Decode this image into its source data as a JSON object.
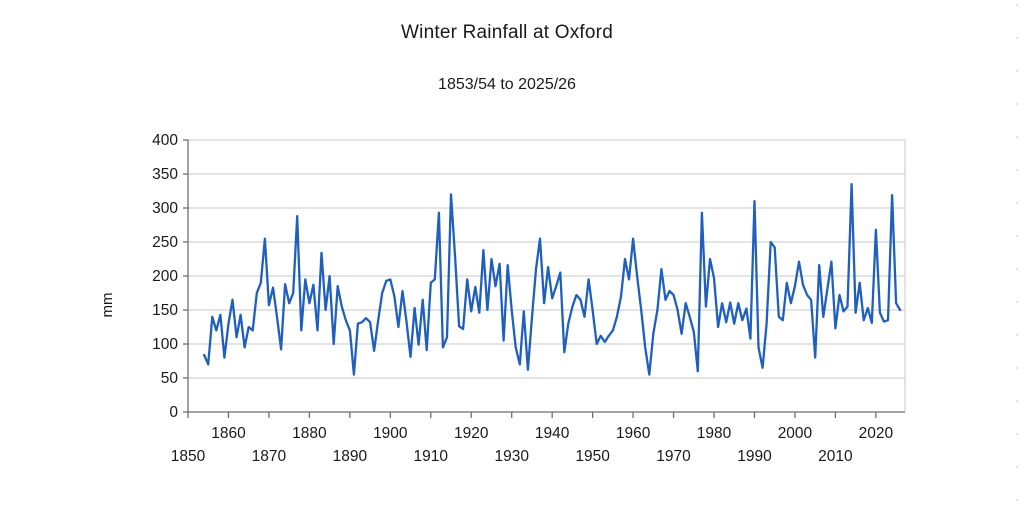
{
  "page": {
    "background": "#ffffff"
  },
  "header": {
    "title": "Winter Rainfall at Oxford",
    "subtitle": "1853/54 to 2025/26"
  },
  "chart_data": {
    "type": "line",
    "title": "Winter Rainfall at Oxford",
    "subtitle": "1853/54 to 2025/26",
    "xlabel": "",
    "ylabel": "mm",
    "ylim": [
      0,
      400
    ],
    "ytick_step": 50,
    "yticks": [
      0,
      50,
      100,
      150,
      200,
      250,
      300,
      350,
      400
    ],
    "xticks": [
      1850,
      1860,
      1870,
      1880,
      1890,
      1900,
      1910,
      1920,
      1930,
      1940,
      1950,
      1960,
      1970,
      1980,
      1990,
      2000,
      2010,
      2020
    ],
    "xtick_label_rows": "staggered",
    "grid": "horizontal",
    "legend": "none",
    "line_color": "#1f5fbe",
    "grid_color": "#c9c9c9",
    "axis_color": "#6e6e6e",
    "x_meaning": "winter ending year (1854 = winter 1853/54)",
    "series": [
      {
        "name": "Winter rainfall total (mm)",
        "x_start": 1854,
        "x_end": 2026,
        "x_step": 1,
        "values": [
          84,
          70,
          140,
          120,
          143,
          80,
          130,
          165,
          110,
          143,
          95,
          125,
          120,
          175,
          190,
          255,
          157,
          183,
          140,
          92,
          188,
          160,
          175,
          288,
          120,
          195,
          160,
          187,
          120,
          234,
          150,
          200,
          100,
          185,
          155,
          135,
          120,
          55,
          130,
          132,
          138,
          132,
          90,
          135,
          175,
          193,
          195,
          170,
          125,
          178,
          133,
          81,
          153,
          99,
          165,
          91,
          190,
          195,
          293,
          95,
          110,
          320,
          228,
          126,
          122,
          195,
          148,
          184,
          146,
          238,
          150,
          225,
          185,
          218,
          105,
          216,
          150,
          95,
          70,
          148,
          62,
          138,
          210,
          255,
          160,
          213,
          167,
          185,
          205,
          88,
          130,
          155,
          172,
          165,
          140,
          195,
          150,
          100,
          112,
          103,
          112,
          120,
          140,
          170,
          225,
          195,
          255,
          200,
          150,
          95,
          55,
          115,
          150,
          210,
          165,
          178,
          172,
          150,
          115,
          160,
          140,
          118,
          60,
          293,
          155,
          225,
          197,
          125,
          160,
          132,
          161,
          130,
          160,
          135,
          152,
          108,
          310,
          95,
          65,
          130,
          250,
          242,
          140,
          135,
          190,
          160,
          185,
          221,
          187,
          172,
          165,
          80,
          216,
          140,
          180,
          221,
          123,
          172,
          148,
          155,
          335,
          146,
          190,
          135,
          153,
          131,
          268,
          146,
          133,
          135,
          319,
          160,
          150
        ]
      }
    ]
  }
}
